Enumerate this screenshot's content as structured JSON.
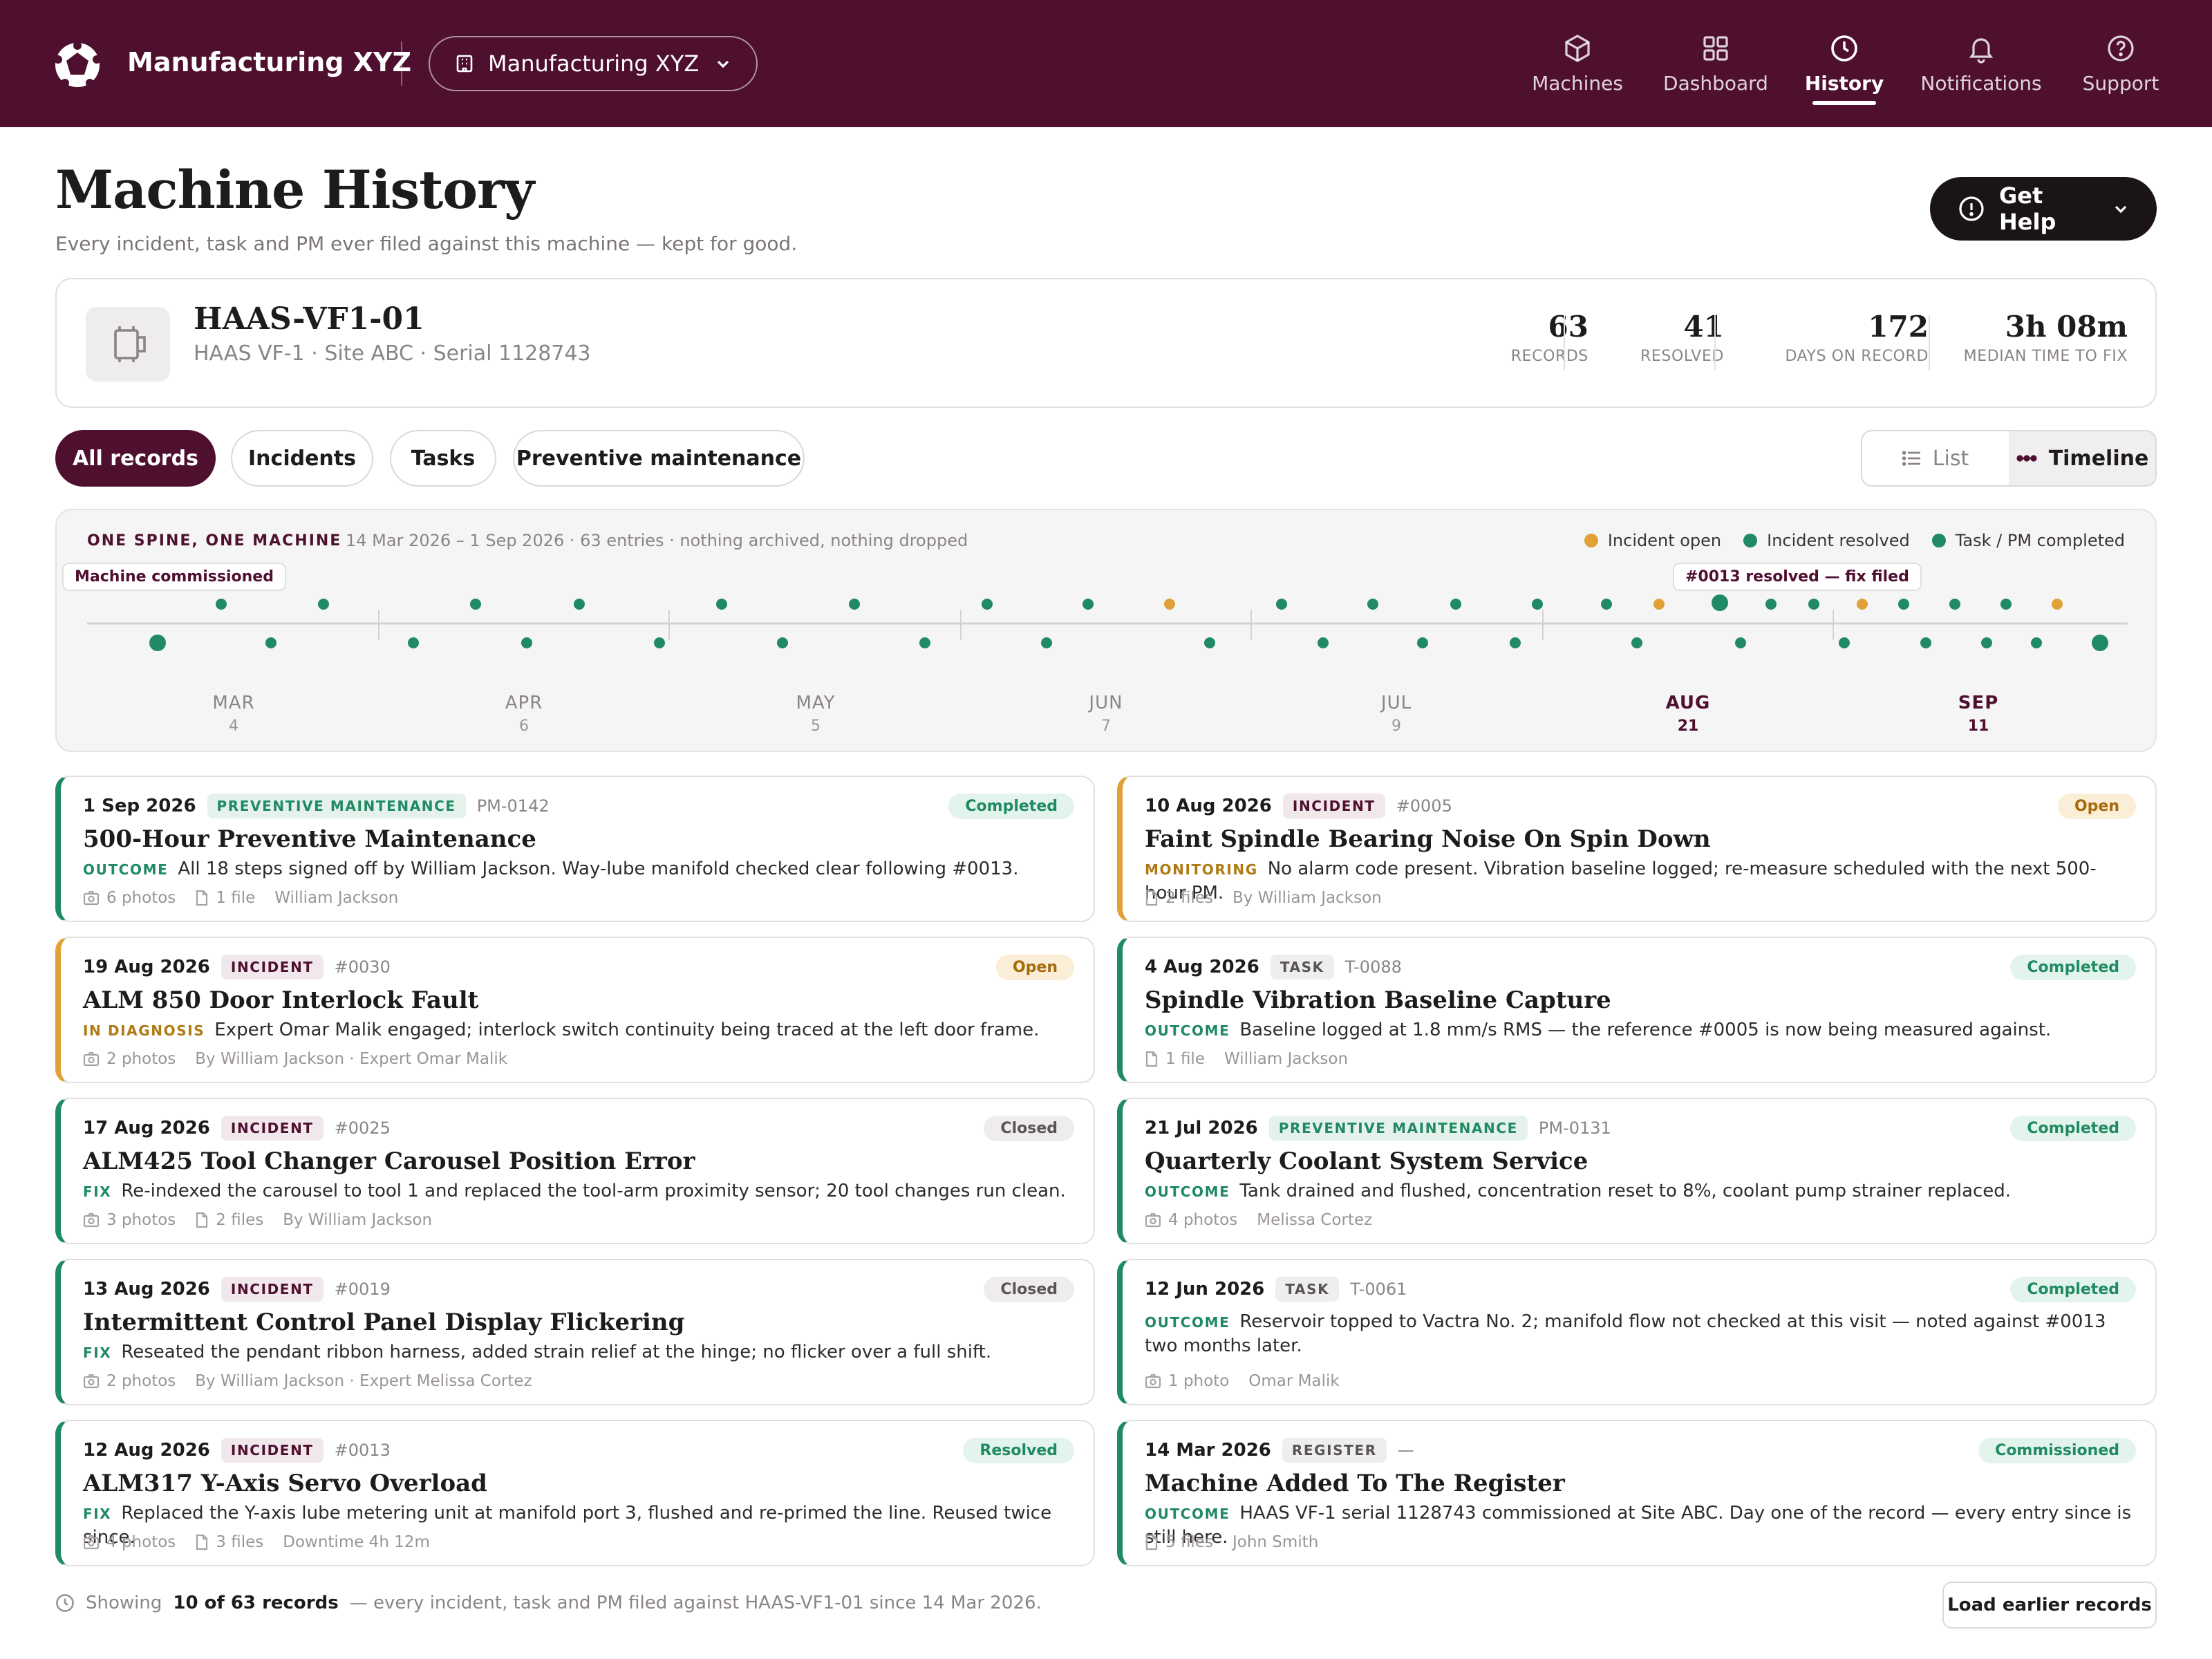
{
  "header": {
    "brand": "Manufacturing XYZ",
    "site_select": "Manufacturing XYZ",
    "nav": [
      {
        "label": "Machines",
        "icon": "cube-icon"
      },
      {
        "label": "Dashboard",
        "icon": "grid-icon"
      },
      {
        "label": "History",
        "icon": "clock-icon",
        "active": true
      },
      {
        "label": "Notifications",
        "icon": "bell-icon"
      },
      {
        "label": "Support",
        "icon": "help-circle-icon"
      }
    ]
  },
  "page": {
    "title": "Machine History",
    "subtitle": "Every incident, task and PM ever filed against this machine — kept for good.",
    "help_button": "Get Help"
  },
  "machine": {
    "name": "HAAS-VF1-01",
    "meta": "HAAS VF-1 · Site ABC · Serial 1128743",
    "stats": [
      {
        "value": "63",
        "label": "RECORDS"
      },
      {
        "value": "41",
        "label": "RESOLVED"
      },
      {
        "value": "172",
        "label": "DAYS ON RECORD"
      },
      {
        "value": "3h 08m",
        "label": "MEDIAN TIME TO FIX"
      }
    ]
  },
  "filters": {
    "tabs": [
      "All records",
      "Incidents",
      "Tasks",
      "Preventive maintenance"
    ],
    "active_tab": "All records",
    "views": [
      "List",
      "Timeline"
    ],
    "active_view": "Timeline"
  },
  "timeline": {
    "kicker": "ONE SPINE, ONE MACHINE",
    "range_text": "14 Mar 2026 – 1 Sep 2026 · 63 entries · nothing archived, nothing dropped",
    "legend": [
      {
        "label": "Incident open",
        "color": "#e0a238"
      },
      {
        "label": "Incident resolved",
        "color": "#1f8a63"
      },
      {
        "label": "Task / PM completed",
        "color": "#1f8a63"
      }
    ],
    "annotation_start": "Machine commissioned",
    "annotation_event": "#0013 resolved — fix filed",
    "months": [
      {
        "m": "MAR",
        "count": "4"
      },
      {
        "m": "APR",
        "count": "6"
      },
      {
        "m": "MAY",
        "count": "5"
      },
      {
        "m": "JUN",
        "count": "7"
      },
      {
        "m": "JUL",
        "count": "9"
      },
      {
        "m": "AUG",
        "count": "21",
        "highlight": true
      },
      {
        "m": "SEP",
        "count": "11",
        "highlight": true
      }
    ]
  },
  "records": [
    {
      "date": "1 Sep 2026",
      "type": "PREVENTIVE MAINTENANCE",
      "type_class": "pm",
      "code": "PM-0142",
      "status": "Completed",
      "status_class": "completed",
      "accent": "green",
      "title": "500-Hour Preventive Maintenance",
      "body_key": "OUTCOME",
      "body_warn": false,
      "body": "All 18 steps signed off by William Jackson. Way-lube manifold checked clear following #0013.",
      "meta": [
        {
          "icon": "camera-icon",
          "text": "6 photos"
        },
        {
          "icon": "file-icon",
          "text": "1 file"
        },
        {
          "icon": "",
          "text": "William Jackson"
        }
      ]
    },
    {
      "date": "10 Aug 2026",
      "type": "INCIDENT",
      "type_class": "inc",
      "code": "#0005",
      "status": "Open",
      "status_class": "open",
      "accent": "amber",
      "title": "Faint Spindle Bearing Noise On Spin Down",
      "body_key": "MONITORING",
      "body_warn": true,
      "body": "No alarm code present. Vibration baseline logged; re-measure scheduled with the next 500-hour PM.",
      "meta": [
        {
          "icon": "file-icon",
          "text": "2 files"
        },
        {
          "icon": "",
          "text": "By William Jackson"
        }
      ]
    },
    {
      "date": "19 Aug 2026",
      "type": "INCIDENT",
      "type_class": "inc",
      "code": "#0030",
      "status": "Open",
      "status_class": "open",
      "accent": "amber",
      "title": "ALM 850 Door Interlock Fault",
      "body_key": "IN DIAGNOSIS",
      "body_warn": true,
      "body": "Expert Omar Malik engaged; interlock switch continuity being traced at the left door frame.",
      "meta": [
        {
          "icon": "camera-icon",
          "text": "2 photos"
        },
        {
          "icon": "",
          "text": "By William Jackson · Expert Omar Malik"
        }
      ]
    },
    {
      "date": "4 Aug 2026",
      "type": "TASK",
      "type_class": "task",
      "code": "T-0088",
      "status": "Completed",
      "status_class": "completed",
      "accent": "green",
      "title": "Spindle Vibration Baseline Capture",
      "body_key": "OUTCOME",
      "body_warn": false,
      "body": "Baseline logged at 1.8 mm/s RMS — the reference #0005 is now being measured against.",
      "meta": [
        {
          "icon": "file-icon",
          "text": "1 file"
        },
        {
          "icon": "",
          "text": "William Jackson"
        }
      ]
    },
    {
      "date": "17 Aug 2026",
      "type": "INCIDENT",
      "type_class": "inc",
      "code": "#0025",
      "status": "Closed",
      "status_class": "closed",
      "accent": "green",
      "title": "ALM425 Tool Changer Carousel Position Error",
      "body_key": "FIX",
      "body_warn": false,
      "body": "Re-indexed the carousel to tool 1 and replaced the tool-arm proximity sensor; 20 tool changes run clean.",
      "meta": [
        {
          "icon": "camera-icon",
          "text": "3 photos"
        },
        {
          "icon": "file-icon",
          "text": "2 files"
        },
        {
          "icon": "",
          "text": "By William Jackson"
        }
      ]
    },
    {
      "date": "21 Jul 2026",
      "type": "PREVENTIVE MAINTENANCE",
      "type_class": "pm",
      "code": "PM-0131",
      "status": "Completed",
      "status_class": "completed",
      "accent": "green",
      "title": "Quarterly Coolant System Service",
      "body_key": "OUTCOME",
      "body_warn": false,
      "body": "Tank drained and flushed, concentration reset to 8%, coolant pump strainer replaced.",
      "meta": [
        {
          "icon": "camera-icon",
          "text": "4 photos"
        },
        {
          "icon": "",
          "text": "Melissa Cortez"
        }
      ]
    },
    {
      "date": "13 Aug 2026",
      "type": "INCIDENT",
      "type_class": "inc",
      "code": "#0019",
      "status": "Closed",
      "status_class": "closed",
      "accent": "green",
      "title": "Intermittent Control Panel Display Flickering",
      "body_key": "FIX",
      "body_warn": false,
      "body": "Reseated the pendant ribbon harness, added strain relief at the hinge; no flicker over a full shift.",
      "meta": [
        {
          "icon": "camera-icon",
          "text": "2 photos"
        },
        {
          "icon": "",
          "text": "By William Jackson · Expert Melissa Cortez"
        }
      ]
    },
    {
      "date": "12 Jun 2026",
      "type": "TASK",
      "type_class": "task",
      "code": "T-0061",
      "status": "Completed",
      "status_class": "completed",
      "accent": "green",
      "title": "",
      "body_key": "OUTCOME",
      "body_warn": false,
      "body": "Reservoir topped to Vactra No. 2; manifold flow not checked at this visit — noted against #0013 two months later.",
      "meta": [
        {
          "icon": "camera-icon",
          "text": "1 photo"
        },
        {
          "icon": "",
          "text": "Omar Malik"
        }
      ]
    },
    {
      "date": "12 Aug 2026",
      "type": "INCIDENT",
      "type_class": "inc",
      "code": "#0013",
      "status": "Resolved",
      "status_class": "resolved",
      "accent": "green",
      "title": "ALM317 Y-Axis Servo Overload",
      "body_key": "FIX",
      "body_warn": false,
      "body": "Replaced the Y-axis lube metering unit at manifold port 3, flushed and re-primed the line. Reused twice since.",
      "meta": [
        {
          "icon": "camera-icon",
          "text": "4 photos"
        },
        {
          "icon": "file-icon",
          "text": "3 files"
        },
        {
          "icon": "",
          "text": "Downtime 4h 12m"
        }
      ]
    },
    {
      "date": "14 Mar 2026",
      "type": "REGISTER",
      "type_class": "reg",
      "code": "—",
      "status": "Commissioned",
      "status_class": "commissioned",
      "accent": "green",
      "title": "Machine Added To The Register",
      "body_key": "OUTCOME",
      "body_warn": false,
      "body": "HAAS VF-1 serial 1128743 commissioned at Site ABC. Day one of the record — every entry since is still here.",
      "meta": [
        {
          "icon": "file-icon",
          "text": "5 files"
        },
        {
          "icon": "",
          "text": "John Smith"
        }
      ]
    }
  ],
  "footer": {
    "prefix": "Showing",
    "count": "10 of 63 records",
    "suffix": "— every incident, task and PM filed against HAAS-VF1-01 since 14 Mar 2026.",
    "load_button": "Load earlier records"
  }
}
